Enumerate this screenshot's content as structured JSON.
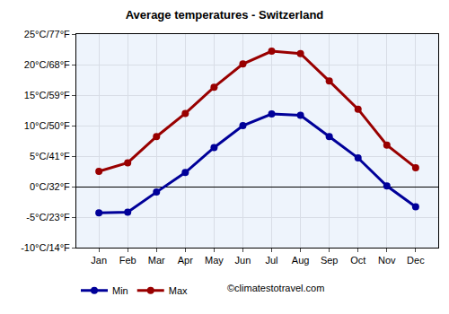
{
  "chart_data": {
    "type": "line",
    "title": "Average temperatures - Switzerland",
    "categories": [
      "Jan",
      "Feb",
      "Mar",
      "Apr",
      "May",
      "Jun",
      "Jul",
      "Aug",
      "Sep",
      "Oct",
      "Nov",
      "Dec"
    ],
    "series": [
      {
        "name": "Min",
        "color": "#000099",
        "marker": "circle",
        "line_style": "solid",
        "values": [
          -4.3,
          -4.2,
          -0.9,
          2.3,
          6.4,
          10.0,
          11.9,
          11.7,
          8.2,
          4.7,
          0.1,
          -3.3
        ]
      },
      {
        "name": "Max",
        "color": "#990000",
        "marker": "circle",
        "line_style": "solid",
        "values": [
          2.5,
          3.9,
          8.2,
          12.0,
          16.3,
          20.1,
          22.2,
          21.8,
          17.3,
          12.7,
          6.8,
          3.1
        ]
      }
    ],
    "ylim": [
      -10,
      25
    ],
    "yticks": [
      {
        "value": -10,
        "label": "-10°C/14°F"
      },
      {
        "value": -5,
        "label": "-5°C/23°F"
      },
      {
        "value": 0,
        "label": "0°C/32°F"
      },
      {
        "value": 5,
        "label": "5°C/41°F"
      },
      {
        "value": 10,
        "label": "10°C/50°F"
      },
      {
        "value": 15,
        "label": "15°C/59°F"
      },
      {
        "value": 20,
        "label": "20°C/68°F"
      },
      {
        "value": 25,
        "label": "25°C/77°F"
      }
    ],
    "grid": true,
    "legend": "bottom left",
    "annotations": [
      "©climatestotravel.com"
    ]
  }
}
